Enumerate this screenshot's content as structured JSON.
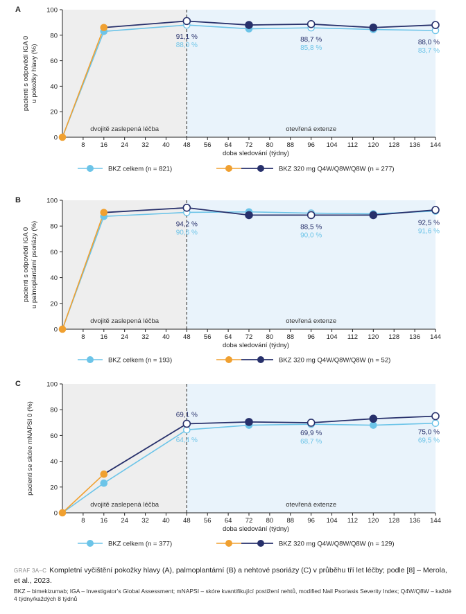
{
  "chart_data": [
    {
      "type": "line",
      "panel_letter": "A",
      "ylabel": [
        "pacienti s odpovědí IGA 0",
        "u pokožky hlavy (%)"
      ],
      "xlabel": "doba sledování (týdny)",
      "xlim": [
        0,
        144
      ],
      "ylim": [
        0,
        100
      ],
      "x_ticks": [
        8,
        16,
        24,
        32,
        40,
        48,
        56,
        64,
        72,
        80,
        88,
        96,
        104,
        112,
        120,
        128,
        136,
        144
      ],
      "y_ticks": [
        0,
        20,
        40,
        60,
        80,
        100
      ],
      "region_labels": {
        "blinded": "dvojitě zaslepená léčba",
        "extension": "otevřená extenze"
      },
      "series": [
        {
          "name": "BKZ celkem (n = 821)",
          "color": "#6cc4e8",
          "x": [
            0,
            16,
            48,
            72,
            96,
            120,
            144
          ],
          "values": [
            0,
            83,
            88.0,
            85,
            85.8,
            84.5,
            83.7
          ]
        },
        {
          "name": "BKZ 320 mg Q4W/Q8W/Q8W (n = 277)",
          "color": "#27306b",
          "lead_color": "#f0a030",
          "x": [
            0,
            16,
            48,
            72,
            96,
            120,
            144
          ],
          "values": [
            0,
            86,
            91.1,
            88,
            88.7,
            86,
            88.0
          ]
        }
      ],
      "value_labels": [
        {
          "x": 48,
          "top": "91,1 %",
          "bottom": "88,0 %"
        },
        {
          "x": 96,
          "top": "88,7 %",
          "bottom": "85,8 %"
        },
        {
          "x": 144,
          "top": "88,0 %",
          "bottom": "83,7 %"
        }
      ]
    },
    {
      "type": "line",
      "panel_letter": "B",
      "ylabel": [
        "pacienti s odpovědí IGA 0",
        "u palmoplantární psoriázy (%)"
      ],
      "xlabel": "doba sledování (týdny)",
      "xlim": [
        0,
        144
      ],
      "ylim": [
        0,
        100
      ],
      "x_ticks": [
        8,
        16,
        24,
        32,
        40,
        48,
        56,
        64,
        72,
        80,
        88,
        96,
        104,
        112,
        120,
        128,
        136,
        144
      ],
      "y_ticks": [
        0,
        20,
        40,
        60,
        80,
        100
      ],
      "region_labels": {
        "blinded": "dvojitě zaslepená léčba",
        "extension": "otevřená extenze"
      },
      "series": [
        {
          "name": "BKZ celkem (n = 193)",
          "color": "#6cc4e8",
          "x": [
            0,
            16,
            48,
            72,
            96,
            120,
            144
          ],
          "values": [
            0,
            87.5,
            90.6,
            91,
            90.0,
            89.5,
            91.6
          ]
        },
        {
          "name": "BKZ 320 mg Q4W/Q8W/Q8W (n = 52)",
          "color": "#27306b",
          "lead_color": "#f0a030",
          "x": [
            0,
            16,
            48,
            72,
            96,
            120,
            144
          ],
          "values": [
            0,
            90.5,
            94.2,
            88.5,
            88.5,
            88.5,
            92.5
          ]
        }
      ],
      "value_labels": [
        {
          "x": 48,
          "top": "94,2 %",
          "bottom": "90,6 %"
        },
        {
          "x": 96,
          "top": "88,5 %",
          "bottom": "90,0 %"
        },
        {
          "x": 144,
          "top": "92,5 %",
          "bottom": "91,6 %"
        }
      ]
    },
    {
      "type": "line",
      "panel_letter": "C",
      "ylabel": [
        "pacienti se skóre mNAPSI 0 (%)"
      ],
      "xlabel": "doba sledování (týdny)",
      "xlim": [
        0,
        144
      ],
      "ylim": [
        0,
        100
      ],
      "x_ticks": [
        8,
        16,
        24,
        32,
        40,
        48,
        56,
        64,
        72,
        80,
        88,
        96,
        104,
        112,
        120,
        128,
        136,
        144
      ],
      "y_ticks": [
        0,
        20,
        40,
        60,
        80,
        100
      ],
      "region_labels": {
        "blinded": "dvojitě zaslepená léčba",
        "extension": "otevřená extenze"
      },
      "series": [
        {
          "name": "BKZ celkem (n = 377)",
          "color": "#6cc4e8",
          "x": [
            0,
            16,
            48,
            72,
            96,
            120,
            144
          ],
          "values": [
            0,
            23,
            64.4,
            68,
            68.7,
            68,
            69.5
          ]
        },
        {
          "name": "BKZ 320 mg Q4W/Q8W/Q8W (n = 129)",
          "color": "#27306b",
          "lead_color": "#f0a030",
          "x": [
            0,
            16,
            48,
            72,
            96,
            120,
            144
          ],
          "values": [
            0,
            30,
            69.1,
            70.5,
            69.9,
            73,
            75.0
          ]
        }
      ],
      "value_labels": [
        {
          "x": 48,
          "top": "69,1 %",
          "bottom": "64,4 %"
        },
        {
          "x": 96,
          "top": "69,9 %",
          "bottom": "68,7 %"
        },
        {
          "x": 144,
          "top": "75,0 %",
          "bottom": "69,5 %"
        }
      ]
    }
  ],
  "caption": {
    "label": "GRAF 3A–C",
    "text": "Kompletní vyčištění pokožky hlavy (A), palmoplantární (B) a nehtové psoriázy (C) v průběhu tří let léčby; podle [8] – Merola, et al., 2023.",
    "abbreviations": "BKZ – bimekizumab; IGA – Investigator’s Global Assessment; mNAPSI – skóre kvantifikující postižení nehtů, modified Nail Psoriasis Severity Index; Q4W/Q8W – každé 4 týdny/každých 8 týdnů"
  }
}
